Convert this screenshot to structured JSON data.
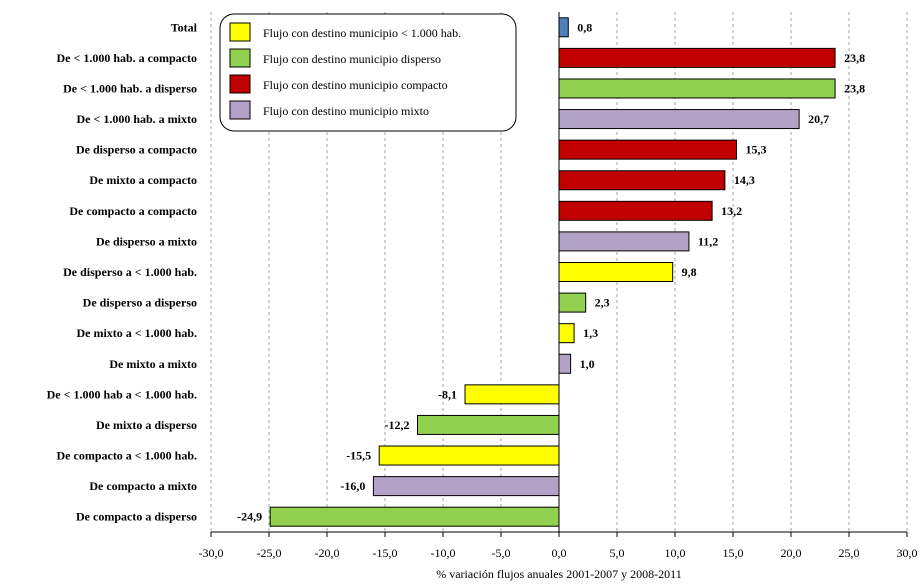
{
  "chart_data": {
    "type": "bar",
    "orientation": "horizontal",
    "xlabel": "% variación flujos anuales 2001-2007 y 2008-2011",
    "xlim": [
      -30,
      30
    ],
    "x_ticks": [
      "-30,0",
      "-25,0",
      "-20,0",
      "-15,0",
      "-10,0",
      "-5,0",
      "0,0",
      "5,0",
      "10,0",
      "15,0",
      "20,0",
      "25,0",
      "30,0"
    ],
    "grid": "vertical dashed",
    "legend_position": "top-left",
    "legend": [
      {
        "key": "lt1000",
        "label": "Flujo con destino municipio < 1.000 hab.",
        "color": "#ffff00"
      },
      {
        "key": "disperso",
        "label": "Flujo con destino municipio disperso",
        "color": "#92d050"
      },
      {
        "key": "compacto",
        "label": "Flujo con destino municipio compacto",
        "color": "#c00000"
      },
      {
        "key": "mixto",
        "label": "Flujo con destino municipio mixto",
        "color": "#b3a2c7"
      }
    ],
    "total_color": "#4f81bd",
    "bars": [
      {
        "category": "Total",
        "value": 0.8,
        "label": "0,8",
        "group": "total"
      },
      {
        "category": "De < 1.000 hab. a compacto",
        "value": 23.8,
        "label": "23,8",
        "group": "compacto"
      },
      {
        "category": "De < 1.000 hab. a disperso",
        "value": 23.8,
        "label": "23,8",
        "group": "disperso"
      },
      {
        "category": "De < 1.000 hab. a mixto",
        "value": 20.7,
        "label": "20,7",
        "group": "mixto"
      },
      {
        "category": "De disperso a compacto",
        "value": 15.3,
        "label": "15,3",
        "group": "compacto"
      },
      {
        "category": "De mixto a compacto",
        "value": 14.3,
        "label": "14,3",
        "group": "compacto"
      },
      {
        "category": "De compacto a compacto",
        "value": 13.2,
        "label": "13,2",
        "group": "compacto"
      },
      {
        "category": "De disperso a mixto",
        "value": 11.2,
        "label": "11,2",
        "group": "mixto"
      },
      {
        "category": "De disperso a < 1.000 hab.",
        "value": 9.8,
        "label": "9,8",
        "group": "lt1000"
      },
      {
        "category": "De disperso a disperso",
        "value": 2.3,
        "label": "2,3",
        "group": "disperso"
      },
      {
        "category": "De mixto a < 1.000 hab.",
        "value": 1.3,
        "label": "1,3",
        "group": "lt1000"
      },
      {
        "category": "De mixto a mixto",
        "value": 1.0,
        "label": "1,0",
        "group": "mixto"
      },
      {
        "category": "De < 1.000 hab a < 1.000 hab.",
        "value": -8.1,
        "label": "-8,1",
        "group": "lt1000"
      },
      {
        "category": "De mixto a disperso",
        "value": -12.2,
        "label": "-12,2",
        "group": "disperso"
      },
      {
        "category": "De compacto a < 1.000 hab.",
        "value": -15.5,
        "label": "-15,5",
        "group": "lt1000"
      },
      {
        "category": "De compacto a mixto",
        "value": -16.0,
        "label": "-16,0",
        "group": "mixto"
      },
      {
        "category": "De compacto a disperso",
        "value": -24.9,
        "label": "-24,9",
        "group": "disperso"
      }
    ]
  }
}
